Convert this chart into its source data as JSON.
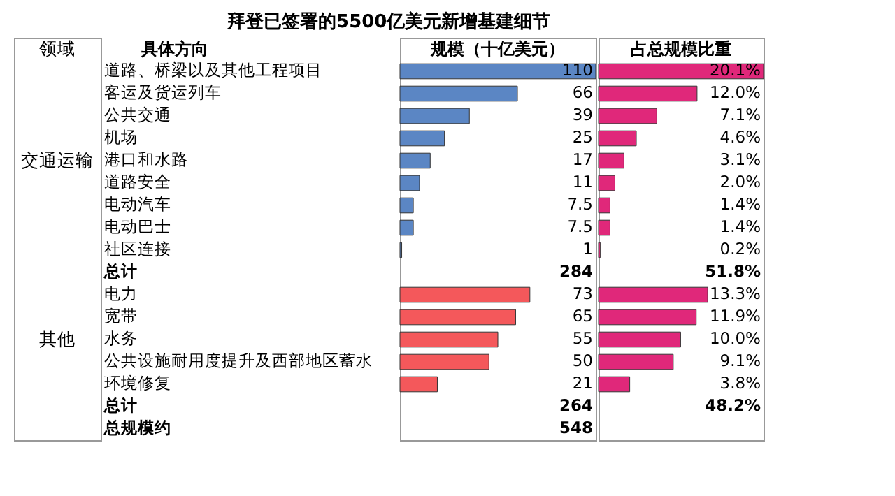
{
  "chart_data": [
    {
      "type": "bar",
      "orientation": "horizontal",
      "title": "拜登已签署的5500亿美元新增基建细节",
      "xlabel": "规模（十亿美元）",
      "ylabel": "具体方向",
      "tick_labels": "y",
      "annotations": [
        "领域",
        "交通运输",
        "其他"
      ],
      "categories": [
        "道路、桥梁以及其他工程项目",
        "客运及货运列车",
        "公共交通",
        "机场",
        "港口和水路",
        "道路安全",
        "电动汽车",
        "电动巴士",
        "社区连接",
        "总计",
        "电力",
        "宽带",
        "水务",
        "公共设施耐用度提升及西部地区蓄水",
        "环境修复",
        "总计",
        "总规模约"
      ],
      "values": [
        110,
        66,
        39,
        25,
        17,
        11,
        7.5,
        7.5,
        1,
        null,
        73,
        65,
        55,
        50,
        21,
        null,
        null
      ],
      "value_labels": [
        "110",
        "66",
        "39",
        "25",
        "17",
        "11",
        "7.5",
        "7.5",
        "1",
        "284",
        "73",
        "65",
        "55",
        "50",
        "21",
        "264",
        "548"
      ],
      "colors": [
        "#5b86c4",
        "#5b86c4",
        "#5b86c4",
        "#5b86c4",
        "#5b86c4",
        "#5b86c4",
        "#5b86c4",
        "#5b86c4",
        "#5b86c4",
        null,
        "#f4585b",
        "#f4585b",
        "#f4585b",
        "#f4585b",
        "#f4585b",
        null,
        null
      ]
    },
    {
      "type": "bar",
      "orientation": "horizontal",
      "xlabel": "占总规模比重",
      "tick_labels": false,
      "values": [
        20.1,
        12.0,
        7.1,
        4.6,
        3.1,
        2.0,
        1.4,
        1.4,
        0.2,
        null,
        13.3,
        11.9,
        10.0,
        9.1,
        3.8,
        null,
        null
      ],
      "value_labels": [
        "20.1%",
        "12.0%",
        "7.1%",
        "4.6%",
        "3.1%",
        "2.0%",
        "1.4%",
        "1.4%",
        "0.2%",
        "51.8%",
        "13.3%",
        "11.9%",
        "10.0%",
        "9.1%",
        "3.8%",
        "48.2%",
        null
      ],
      "colors": [
        "#e0287a",
        "#e0287a",
        "#e0287a",
        "#e0287a",
        "#e0287a",
        "#e0287a",
        "#e0287a",
        "#e0287a",
        "#e0287a",
        null,
        "#e0287a",
        "#e0287a",
        "#e0287a",
        "#e0287a",
        "#e0287a",
        null,
        null
      ]
    }
  ]
}
